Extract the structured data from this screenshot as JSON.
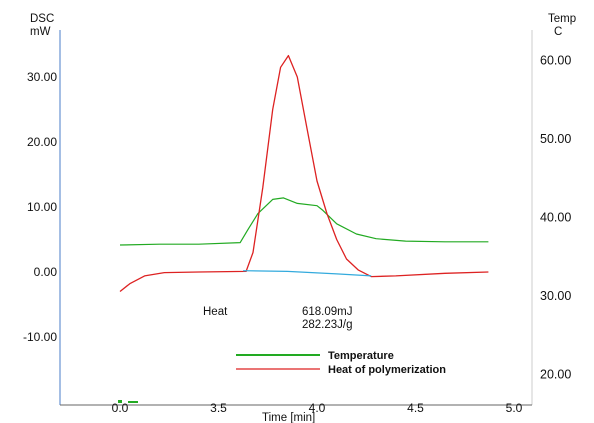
{
  "chart_data": {
    "type": "line",
    "left_axis": {
      "label_line1": "DSC",
      "label_line2": "mW",
      "ticks": [
        "30.00",
        "20.00",
        "10.00",
        "0.00",
        "-10.00"
      ],
      "tick_values": [
        30,
        20,
        10,
        0,
        -10
      ]
    },
    "right_axis": {
      "label_line1": "Temp",
      "label_line2": "C",
      "ticks": [
        "60.00",
        "50.00",
        "40.00",
        "30.00",
        "20.00"
      ],
      "tick_values": [
        60,
        50,
        40,
        30,
        20
      ]
    },
    "x_axis": {
      "label": "Time  [min]",
      "ticks": [
        "0.0",
        "3.5",
        "4.0",
        "4.5",
        "5.0"
      ],
      "tick_positions": [
        0,
        1,
        2,
        3,
        4
      ]
    },
    "annotations": {
      "heat_label": "Heat",
      "heat_value1": "618.09mJ",
      "heat_value2": "282.23J/g"
    },
    "legend": {
      "placement": "bottom-right",
      "entries": [
        "Temperature",
        "Heat of polymerization"
      ]
    },
    "series": [
      {
        "name": "Temperature",
        "axis": "right",
        "color": "#22aa22",
        "points": [
          [
            0,
            36.5
          ],
          [
            0.4,
            36.6
          ],
          [
            0.8,
            36.6
          ],
          [
            1.22,
            36.8
          ],
          [
            1.3,
            38.5
          ],
          [
            1.4,
            40.5
          ],
          [
            1.55,
            42.3
          ],
          [
            1.66,
            42.5
          ],
          [
            1.8,
            41.8
          ],
          [
            2.0,
            41.5
          ],
          [
            2.06,
            40.9
          ],
          [
            2.2,
            39.2
          ],
          [
            2.4,
            37.9
          ],
          [
            2.6,
            37.3
          ],
          [
            2.9,
            37.0
          ],
          [
            3.3,
            36.9
          ],
          [
            3.74,
            36.9
          ]
        ]
      },
      {
        "name": "Heat of polymerization",
        "axis": "left",
        "color": "#dd2222",
        "points": [
          [
            0,
            -3.0
          ],
          [
            0.1,
            -1.8
          ],
          [
            0.25,
            -0.6
          ],
          [
            0.45,
            -0.1
          ],
          [
            0.8,
            0.0
          ],
          [
            1.28,
            0.1
          ],
          [
            1.35,
            3.0
          ],
          [
            1.45,
            13.0
          ],
          [
            1.55,
            25.0
          ],
          [
            1.63,
            31.5
          ],
          [
            1.71,
            33.3
          ],
          [
            1.8,
            30.0
          ],
          [
            1.9,
            22.0
          ],
          [
            2.0,
            14.0
          ],
          [
            2.1,
            9.0
          ],
          [
            2.2,
            5.0
          ],
          [
            2.3,
            2.0
          ],
          [
            2.42,
            0.3
          ],
          [
            2.55,
            -0.7
          ],
          [
            2.8,
            -0.6
          ],
          [
            3.3,
            -0.2
          ],
          [
            3.74,
            0.0
          ]
        ]
      },
      {
        "name": "",
        "axis": "left",
        "color": "#33aadd",
        "points": [
          [
            1.25,
            0.2
          ],
          [
            1.7,
            0.1
          ],
          [
            2.2,
            -0.3
          ],
          [
            2.55,
            -0.6
          ]
        ]
      }
    ]
  }
}
